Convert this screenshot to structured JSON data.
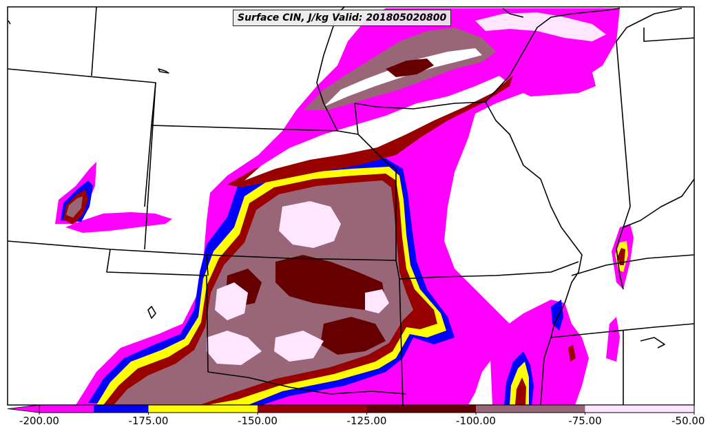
{
  "title": "Surface CIN, J/kg Valid: 201805020800",
  "colorbar": {
    "tick_labels": [
      "-200.00",
      "-175.00",
      "-150.00",
      "-125.00",
      "-100.00",
      "-75.00",
      "-50.00"
    ],
    "bins": [
      {
        "from": -200,
        "to": -187.5,
        "color": "#ff00ff"
      },
      {
        "from": -187.5,
        "to": -175,
        "color": "#0000ff"
      },
      {
        "from": -175,
        "to": -150,
        "color": "#ffff00"
      },
      {
        "from": -150,
        "to": -125,
        "color": "#990000"
      },
      {
        "from": -125,
        "to": -100,
        "color": "#660000"
      },
      {
        "from": -100,
        "to": -75,
        "color": "#996677"
      },
      {
        "from": -75,
        "to": -50,
        "color": "#ffe6ff"
      }
    ]
  },
  "colors": {
    "magenta": "#ff00ff",
    "blue": "#0000ff",
    "yellow": "#ffff00",
    "red": "#990000",
    "darkred": "#660000",
    "mauve": "#996677",
    "pink": "#ffe6ff",
    "border": "#000000"
  }
}
